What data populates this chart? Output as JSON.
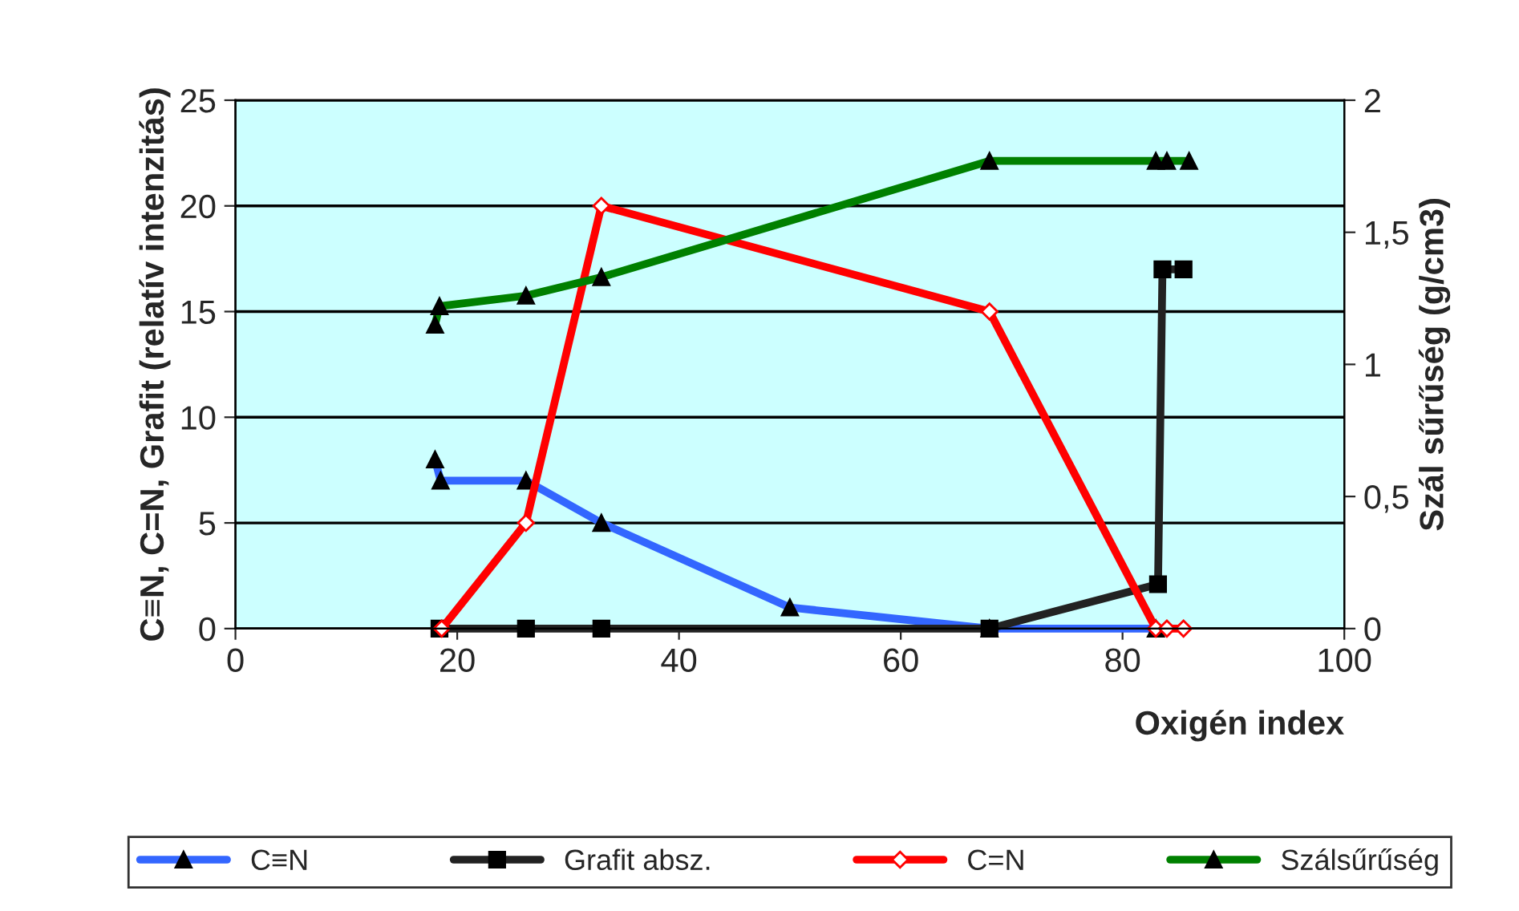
{
  "chart_data": {
    "type": "line",
    "xlabel": "Oxigén index",
    "ylabel": "C≡N, C=N, Grafit (relatív intenzitás)",
    "y2label": "Szál sűrűség (g/cm3)",
    "xlim": [
      0,
      100
    ],
    "xticks": [
      0,
      20,
      40,
      60,
      80,
      100
    ],
    "ylim": [
      0,
      25
    ],
    "yticks": [
      0,
      5,
      10,
      15,
      20,
      25
    ],
    "y2lim": [
      0,
      2
    ],
    "y2ticks": [
      0,
      {
        "value": 0.5,
        "label": "0,5"
      },
      1,
      {
        "value": 1.5,
        "label": "1,5"
      },
      2
    ],
    "grid": "y",
    "legend": "bottom",
    "series": [
      {
        "name": "C≡N",
        "color": "#3366ff",
        "marker": "triangle",
        "x": [
          18.0,
          18.5,
          26.2,
          33,
          50,
          68,
          83
        ],
        "values": [
          8,
          7,
          7,
          5,
          1,
          0,
          0
        ]
      },
      {
        "name": "Grafit absz.",
        "color": "#222222",
        "marker": "square",
        "x": [
          18.4,
          26.2,
          33,
          68,
          83.2,
          83.6,
          85.5
        ],
        "values": [
          0,
          0,
          0,
          0,
          2.1,
          17,
          17
        ]
      },
      {
        "name": "C=N",
        "color": "#ff0000",
        "marker": "diamond",
        "x": [
          18.6,
          26.2,
          33,
          68,
          83,
          84,
          85.5
        ],
        "values": [
          0,
          5,
          20,
          15,
          0,
          0,
          0
        ]
      },
      {
        "name": "Szálsűrűség",
        "color": "#008000",
        "marker": "triangle",
        "axis": "y2",
        "x": [
          18.0,
          18.4,
          26.2,
          33,
          68,
          83,
          84,
          86
        ],
        "values": [
          1.15,
          1.22,
          1.26,
          1.33,
          1.77,
          1.77,
          1.77,
          1.77
        ]
      }
    ]
  }
}
